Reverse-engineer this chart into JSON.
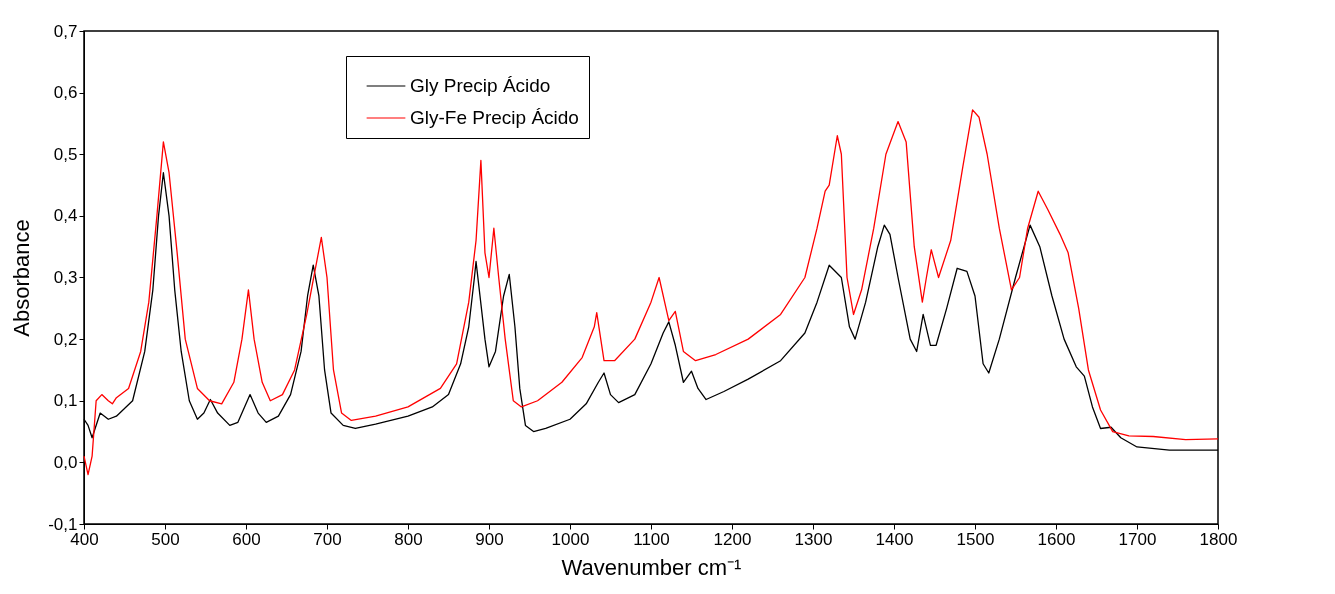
{
  "chart_data": {
    "type": "line",
    "xlabel": "Wavenumber cm⁻¹",
    "ylabel": "Absorbance",
    "xlim": [
      400,
      1800
    ],
    "xticks": [
      400,
      500,
      600,
      700,
      800,
      900,
      1000,
      1100,
      1200,
      1300,
      1400,
      1500,
      1600,
      1700,
      1800
    ],
    "ylim": [
      -0.1,
      0.7
    ],
    "yticks": [
      {
        "value": -0.1,
        "label": "-0,1"
      },
      {
        "value": 0,
        "label": "0,0"
      },
      {
        "value": 0.1,
        "label": "0,1"
      },
      {
        "value": 0.2,
        "label": "0,2"
      },
      {
        "value": 0.3,
        "label": "0,3"
      },
      {
        "value": 0.4,
        "label": "0,4"
      },
      {
        "value": 0.5,
        "label": "0,5"
      },
      {
        "value": 0.6,
        "label": "0,6"
      },
      {
        "value": 0.7,
        "label": "0,7"
      }
    ],
    "grid": false,
    "legend": "top",
    "line_style": "solid",
    "marker": "none",
    "series": [
      {
        "name": "Gly Precip Ácido",
        "color": "#000000",
        "x": [
          400,
          405,
          410,
          420,
          430,
          440,
          460,
          475,
          485,
          492,
          498,
          505,
          512,
          520,
          530,
          540,
          548,
          556,
          565,
          580,
          590,
          605,
          615,
          625,
          640,
          655,
          668,
          676,
          683,
          690,
          697,
          705,
          720,
          735,
          760,
          800,
          830,
          850,
          865,
          875,
          882,
          884,
          895,
          900,
          908,
          918,
          925,
          932,
          938,
          945,
          955,
          970,
          1000,
          1020,
          1035,
          1042,
          1050,
          1060,
          1080,
          1100,
          1115,
          1122,
          1130,
          1140,
          1150,
          1158,
          1168,
          1190,
          1220,
          1260,
          1290,
          1305,
          1320,
          1335,
          1345,
          1352,
          1365,
          1380,
          1388,
          1395,
          1405,
          1420,
          1428,
          1436,
          1445,
          1452,
          1465,
          1478,
          1490,
          1500,
          1510,
          1517,
          1530,
          1550,
          1568,
          1580,
          1595,
          1610,
          1625,
          1635,
          1645,
          1655,
          1668,
          1680,
          1700,
          1740,
          1800
        ],
        "values": [
          0.07,
          0.06,
          0.04,
          0.08,
          0.07,
          0.075,
          0.1,
          0.18,
          0.28,
          0.4,
          0.47,
          0.4,
          0.28,
          0.18,
          0.1,
          0.07,
          0.08,
          0.102,
          0.08,
          0.06,
          0.065,
          0.11,
          0.08,
          0.065,
          0.075,
          0.11,
          0.18,
          0.27,
          0.32,
          0.27,
          0.15,
          0.08,
          0.06,
          0.055,
          0.062,
          0.075,
          0.09,
          0.11,
          0.16,
          0.22,
          0.3,
          0.326,
          0.2,
          0.155,
          0.18,
          0.27,
          0.305,
          0.22,
          0.12,
          0.06,
          0.05,
          0.055,
          0.07,
          0.095,
          0.13,
          0.145,
          0.11,
          0.097,
          0.11,
          0.16,
          0.21,
          0.228,
          0.19,
          0.13,
          0.148,
          0.12,
          0.102,
          0.115,
          0.135,
          0.165,
          0.21,
          0.26,
          0.32,
          0.3,
          0.22,
          0.2,
          0.26,
          0.35,
          0.385,
          0.37,
          0.3,
          0.2,
          0.18,
          0.24,
          0.19,
          0.19,
          0.25,
          0.315,
          0.31,
          0.27,
          0.16,
          0.145,
          0.2,
          0.3,
          0.385,
          0.35,
          0.27,
          0.2,
          0.155,
          0.14,
          0.09,
          0.055,
          0.057,
          0.04,
          0.025,
          0.02,
          0.02
        ]
      },
      {
        "name": "Gly-Fe Precip Ácido",
        "color": "#ff0000",
        "x": [
          400,
          405,
          410,
          415,
          422,
          430,
          435,
          440,
          455,
          470,
          480,
          490,
          498,
          505,
          515,
          525,
          540,
          555,
          570,
          585,
          595,
          603,
          610,
          620,
          630,
          645,
          660,
          675,
          685,
          693,
          700,
          708,
          718,
          730,
          760,
          800,
          840,
          860,
          875,
          884,
          890,
          895,
          900,
          906,
          912,
          920,
          930,
          940,
          960,
          990,
          1015,
          1030,
          1033,
          1042,
          1055,
          1080,
          1100,
          1110,
          1122,
          1130,
          1140,
          1155,
          1180,
          1220,
          1260,
          1290,
          1305,
          1315,
          1320,
          1330,
          1335,
          1342,
          1350,
          1360,
          1375,
          1390,
          1405,
          1415,
          1425,
          1435,
          1440,
          1446,
          1455,
          1470,
          1485,
          1497,
          1505,
          1515,
          1530,
          1545,
          1555,
          1565,
          1578,
          1590,
          1605,
          1615,
          1628,
          1640,
          1655,
          1670,
          1690,
          1720,
          1760,
          1800
        ],
        "values": [
          0.01,
          -0.02,
          0.01,
          0.1,
          0.11,
          0.1,
          0.095,
          0.105,
          0.12,
          0.18,
          0.26,
          0.4,
          0.52,
          0.47,
          0.34,
          0.2,
          0.12,
          0.1,
          0.095,
          0.13,
          0.2,
          0.28,
          0.2,
          0.13,
          0.1,
          0.11,
          0.15,
          0.24,
          0.31,
          0.365,
          0.3,
          0.15,
          0.08,
          0.068,
          0.075,
          0.09,
          0.12,
          0.16,
          0.26,
          0.36,
          0.49,
          0.34,
          0.3,
          0.38,
          0.3,
          0.2,
          0.1,
          0.09,
          0.1,
          0.13,
          0.17,
          0.22,
          0.243,
          0.165,
          0.165,
          0.2,
          0.26,
          0.3,
          0.23,
          0.245,
          0.18,
          0.165,
          0.175,
          0.2,
          0.24,
          0.3,
          0.38,
          0.44,
          0.45,
          0.53,
          0.5,
          0.3,
          0.24,
          0.28,
          0.38,
          0.5,
          0.553,
          0.52,
          0.35,
          0.26,
          0.3,
          0.345,
          0.3,
          0.36,
          0.48,
          0.572,
          0.56,
          0.5,
          0.38,
          0.28,
          0.3,
          0.38,
          0.44,
          0.41,
          0.37,
          0.34,
          0.25,
          0.15,
          0.085,
          0.05,
          0.043,
          0.042,
          0.037,
          0.038
        ]
      }
    ]
  }
}
